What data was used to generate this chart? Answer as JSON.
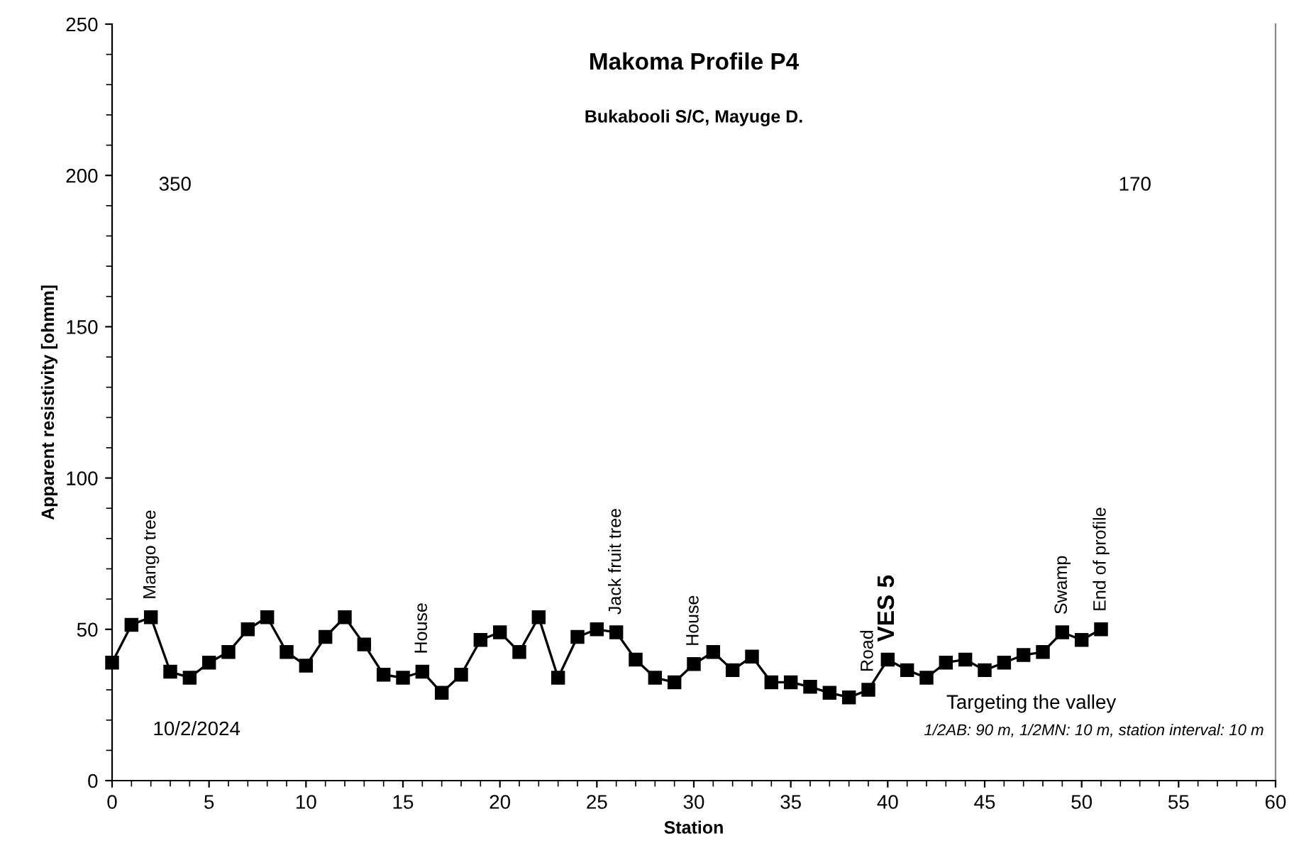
{
  "chart_data": {
    "type": "line",
    "title": "Makoma Profile P4",
    "subtitle": "Bukabooli S/C, Mayuge D.",
    "xlabel": "Station",
    "ylabel": "Apparent resistivity [ohmm]",
    "x": [
      0,
      1,
      2,
      3,
      4,
      5,
      6,
      7,
      8,
      9,
      10,
      11,
      12,
      13,
      14,
      15,
      16,
      17,
      18,
      19,
      20,
      21,
      22,
      23,
      24,
      25,
      26,
      27,
      28,
      29,
      30,
      31,
      32,
      33,
      34,
      35,
      36,
      37,
      38,
      39,
      40,
      41,
      42,
      43,
      44,
      45,
      46,
      47,
      48,
      49,
      50,
      51
    ],
    "series": [
      {
        "color": "#000000",
        "values": [
          39,
          51.5,
          54,
          36,
          34,
          39,
          42.5,
          50,
          54,
          42.5,
          38,
          47.5,
          54,
          45,
          35,
          34,
          36,
          29,
          35,
          46.5,
          49,
          42.5,
          54,
          34,
          47.5,
          50,
          49,
          40,
          34,
          32.5,
          38.5,
          42.5,
          36.5,
          41,
          32.5,
          32.5,
          31,
          29,
          27.5,
          30,
          40,
          36.5,
          34,
          39,
          40,
          36.5,
          39,
          41.5,
          42.5,
          49,
          46.5,
          50
        ]
      }
    ],
    "xlim": [
      0,
      60
    ],
    "xticks": [
      0,
      5,
      10,
      15,
      20,
      25,
      30,
      35,
      40,
      45,
      50,
      55,
      60
    ],
    "ylim": [
      0,
      250
    ],
    "yticks": [
      0,
      50,
      100,
      150,
      200,
      250
    ],
    "marker": "square",
    "line_style": "solid",
    "grid": false,
    "annotations": [
      {
        "text": "Mango tree",
        "x": 2,
        "y": 54
      },
      {
        "text": "House",
        "x": 16,
        "y": 36
      },
      {
        "text": "Jack fruit tree",
        "x": 26,
        "y": 49
      },
      {
        "text": "House",
        "x": 30,
        "y": 38.5
      },
      {
        "text": "Road",
        "x": 39,
        "y": 30
      },
      {
        "text": "VES 5",
        "x": 40,
        "y": 40
      },
      {
        "text": "Swamp",
        "x": 49,
        "y": 49
      },
      {
        "text": "End of profile",
        "x": 51,
        "y": 50
      },
      "350",
      "170",
      "Targeting the valley",
      "10/2/2024",
      "1/2AB: 90 m, 1/2MN: 10 m, station interval: 10 m"
    ]
  }
}
